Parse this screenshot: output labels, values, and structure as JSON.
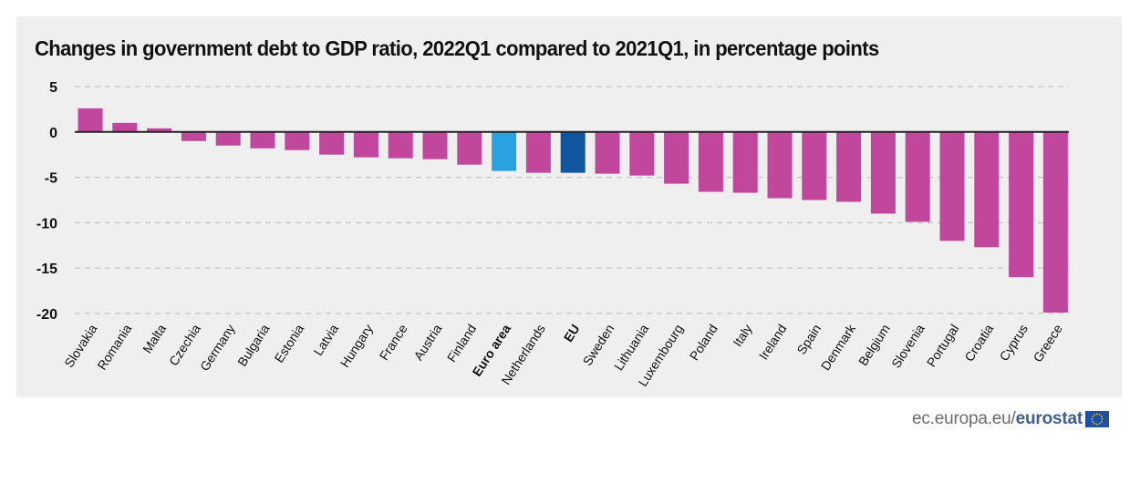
{
  "chart_data": {
    "type": "bar",
    "title": "Changes in government debt to GDP ratio, 2022Q1 compared to 2021Q1, in percentage points",
    "xlabel": "",
    "ylabel": "",
    "ylim": [
      -20,
      5
    ],
    "yticks": [
      5,
      0,
      -5,
      -10,
      -15,
      -20
    ],
    "grid": true,
    "categories": [
      "Slovakia",
      "Romania",
      "Malta",
      "Czechia",
      "Germany",
      "Bulgaria",
      "Estonia",
      "Latvia",
      "Hungary",
      "France",
      "Austria",
      "Finland",
      "Euro area",
      "Netherlands",
      "EU",
      "Sweden",
      "Lithuania",
      "Luxembourg",
      "Poland",
      "Italy",
      "Ireland",
      "Spain",
      "Denmark",
      "Belgium",
      "Slovenia",
      "Portugal",
      "Croatia",
      "Cyprus",
      "Greece"
    ],
    "values": [
      2.6,
      1.0,
      0.4,
      -1.0,
      -1.5,
      -1.8,
      -2.0,
      -2.5,
      -2.8,
      -2.9,
      -3.0,
      -3.6,
      -4.3,
      -4.5,
      -4.5,
      -4.6,
      -4.8,
      -5.7,
      -6.6,
      -6.7,
      -7.3,
      -7.5,
      -7.7,
      -9.0,
      -9.9,
      -12.0,
      -12.7,
      -16.0,
      -19.9
    ],
    "highlight": [
      "Euro area",
      "EU"
    ],
    "colors": {
      "default": "#c0479c",
      "Euro area": "#2aa2e2",
      "EU": "#11569e",
      "grid": "#c3c3c3",
      "axis": "#222222",
      "text": "#111111"
    }
  },
  "footer": {
    "source_prefix": "ec.europa.eu/",
    "source_brand": "eurostat",
    "flag_colors": {
      "background": "#1f4fa3",
      "stars": "#f5d000"
    }
  }
}
